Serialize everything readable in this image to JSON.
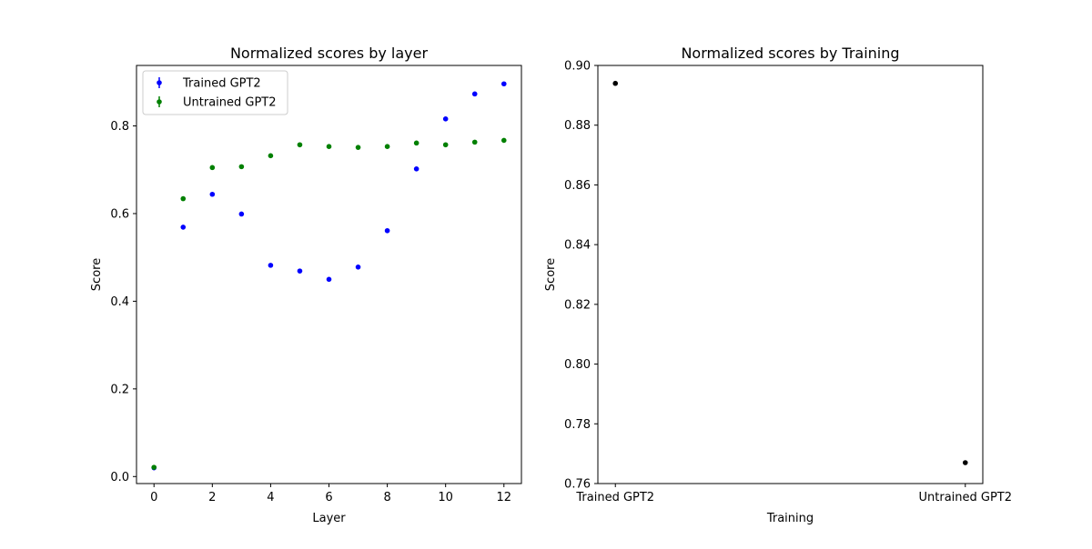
{
  "chart_data": [
    {
      "type": "scatter",
      "title": "Normalized scores by layer",
      "xlabel": "Layer",
      "ylabel": "Score",
      "xlim": [
        -0.6,
        12.6
      ],
      "ylim": [
        -0.016,
        0.938
      ],
      "xticks": [
        0,
        2,
        4,
        6,
        8,
        10,
        12
      ],
      "xtick_labels": [
        "0",
        "2",
        "4",
        "6",
        "8",
        "10",
        "12"
      ],
      "yticks": [
        0.0,
        0.2,
        0.4,
        0.6,
        0.8
      ],
      "ytick_labels": [
        "0.0",
        "0.2",
        "0.4",
        "0.6",
        "0.8"
      ],
      "grid": false,
      "legend_position": "top-left",
      "series": [
        {
          "name": "Trained GPT2",
          "color": "#0000ff",
          "x": [
            0,
            1,
            2,
            3,
            4,
            5,
            6,
            7,
            8,
            9,
            10,
            11,
            12
          ],
          "y": [
            0.02,
            0.569,
            0.644,
            0.599,
            0.482,
            0.469,
            0.45,
            0.478,
            0.561,
            0.702,
            0.816,
            0.873,
            0.896
          ]
        },
        {
          "name": "Untrained GPT2",
          "color": "#008000",
          "x": [
            0,
            1,
            2,
            3,
            4,
            5,
            6,
            7,
            8,
            9,
            10,
            11,
            12
          ],
          "y": [
            0.021,
            0.634,
            0.705,
            0.707,
            0.732,
            0.757,
            0.753,
            0.751,
            0.753,
            0.761,
            0.757,
            0.763,
            0.767
          ]
        }
      ]
    },
    {
      "type": "scatter",
      "title": "Normalized scores by Training",
      "xlabel": "Training",
      "ylabel": "Score",
      "categories": [
        "Trained GPT2",
        "Untrained GPT2"
      ],
      "xlim": [
        -0.05,
        1.05
      ],
      "ylim": [
        0.76,
        0.9
      ],
      "yticks": [
        0.76,
        0.78,
        0.8,
        0.82,
        0.84,
        0.86,
        0.88,
        0.9
      ],
      "ytick_labels": [
        "0.76",
        "0.78",
        "0.80",
        "0.82",
        "0.84",
        "0.86",
        "0.88",
        "0.90"
      ],
      "grid": false,
      "series": [
        {
          "color": "#000000",
          "values": [
            0.894,
            0.767
          ]
        }
      ]
    }
  ]
}
